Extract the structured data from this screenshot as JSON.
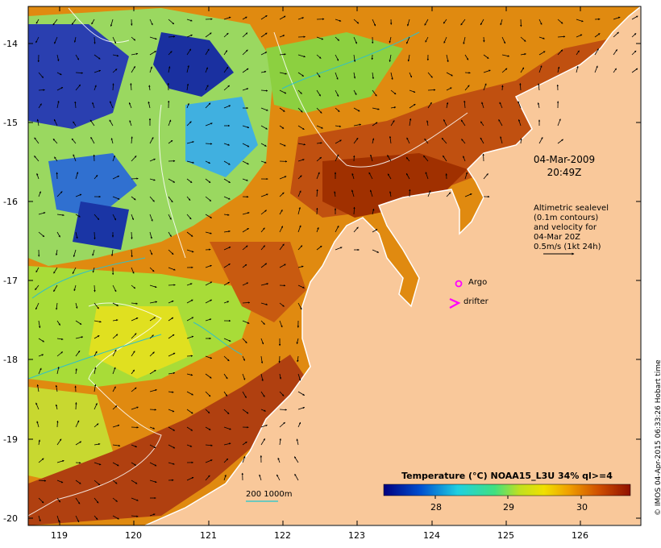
{
  "map": {
    "timestamp_date": "04-Mar-2009",
    "timestamp_time": "20:49Z",
    "altimetry_note_lines": [
      "Altimetric sealevel",
      "(0.1m contours)",
      "and velocity for",
      "04-Mar 20Z",
      "0.5m/s (1kt 24h)"
    ],
    "legend_argo": "Argo",
    "legend_drifter": "drifter",
    "contour_label": "200  1000m",
    "colorbar_title": "Temperature (°C) NOAA15_L3U 34% ql>=4",
    "colorbar_ticks": [
      "28",
      "29",
      "30"
    ],
    "credit": "© IMOS 04-Apr-2015 06:33:26 Hobart time",
    "lat_labels": [
      "-14",
      "-15",
      "-16",
      "-17",
      "-18",
      "-19",
      "-20"
    ],
    "lon_labels": [
      "119",
      "120",
      "121",
      "122",
      "123",
      "124",
      "125",
      "126"
    ],
    "colors": {
      "land": "#f9c89a",
      "cold": "#002090",
      "cool": "#1fc8d8",
      "mid": "#b8e030",
      "warm": "#f0a000",
      "hot": "#b03000",
      "coast": "#ffffff",
      "contour": "#40c8c8",
      "marker": "#ff00ff"
    },
    "icons": {
      "argo": "circle-marker",
      "drifter": "chevron-marker",
      "velocity": "arrow-glyph"
    }
  }
}
